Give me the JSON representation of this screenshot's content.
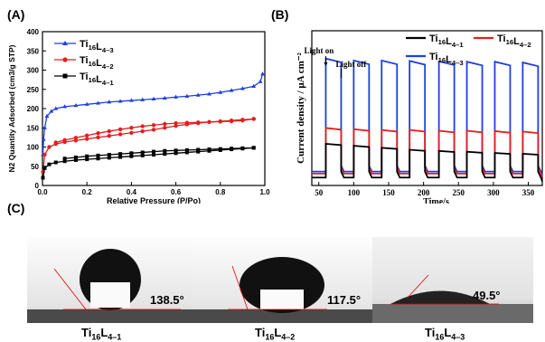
{
  "labels": {
    "a": "(A)",
    "b": "(B)",
    "c": "(C)"
  },
  "chart_data": [
    {
      "panel": "A",
      "type": "line",
      "xlabel": "Relative Pressure (P/Po)",
      "ylabel": "N2 Quantity Adsorbed (cm3/g STP)",
      "xlim": [
        0,
        1.0
      ],
      "ylim": [
        0,
        400
      ],
      "xticks": [
        "0.0",
        "0.2",
        "0.4",
        "0.6",
        "0.8",
        "1.0"
      ],
      "yticks": [
        "0",
        "50",
        "100",
        "150",
        "200",
        "250",
        "300",
        "350",
        "400"
      ],
      "legend": [
        "Ti16L4-3",
        "Ti16L4-2",
        "Ti16L4-1"
      ],
      "legend_position": "top-left",
      "series": [
        {
          "name": "Ti16L4-3",
          "color": "#1f3fe0",
          "marker": "triangle",
          "x": [
            0.002,
            0.005,
            0.01,
            0.02,
            0.04,
            0.06,
            0.1,
            0.15,
            0.2,
            0.25,
            0.3,
            0.35,
            0.4,
            0.45,
            0.5,
            0.55,
            0.6,
            0.65,
            0.7,
            0.75,
            0.8,
            0.85,
            0.9,
            0.95,
            0.98,
            0.99
          ],
          "values": [
            80,
            120,
            150,
            180,
            193,
            200,
            205,
            208,
            211,
            214,
            217,
            219,
            221,
            223,
            225,
            227,
            230,
            232,
            235,
            238,
            242,
            247,
            252,
            258,
            270,
            290
          ]
        },
        {
          "name": "Ti16L4-2",
          "color": "#e02020",
          "marker": "circle",
          "x": [
            0.002,
            0.01,
            0.03,
            0.06,
            0.1,
            0.15,
            0.2,
            0.25,
            0.3,
            0.35,
            0.4,
            0.45,
            0.5,
            0.55,
            0.6,
            0.65,
            0.7,
            0.75,
            0.8,
            0.85,
            0.9,
            0.95
          ],
          "values": [
            35,
            80,
            100,
            108,
            113,
            117,
            121,
            125,
            129,
            133,
            137,
            141,
            145,
            150,
            155,
            159,
            162,
            165,
            167,
            169,
            171,
            173
          ]
        },
        {
          "name": "Ti16L4-2 desorption",
          "color": "#e02020",
          "marker": "circle",
          "x": [
            0.95,
            0.9,
            0.85,
            0.8,
            0.75,
            0.7,
            0.65,
            0.6,
            0.55,
            0.5,
            0.45,
            0.4,
            0.35,
            0.3,
            0.25,
            0.2,
            0.15,
            0.1,
            0.06
          ],
          "values": [
            173,
            169,
            167,
            166,
            165,
            164,
            163,
            162,
            160,
            157,
            154,
            150,
            146,
            141,
            136,
            130,
            124,
            118,
            112
          ]
        },
        {
          "name": "Ti16L4-1",
          "color": "#000000",
          "marker": "square",
          "x": [
            0.002,
            0.01,
            0.03,
            0.06,
            0.1,
            0.15,
            0.2,
            0.25,
            0.3,
            0.35,
            0.4,
            0.45,
            0.5,
            0.55,
            0.6,
            0.65,
            0.7,
            0.75,
            0.8,
            0.85,
            0.9,
            0.95
          ],
          "values": [
            20,
            45,
            55,
            60,
            63,
            66,
            68,
            70,
            72,
            74,
            76,
            78,
            80,
            82,
            84,
            86,
            88,
            90,
            92,
            94,
            96,
            98
          ]
        },
        {
          "name": "Ti16L4-1 desorption",
          "color": "#000000",
          "marker": "square",
          "x": [
            0.95,
            0.9,
            0.85,
            0.8,
            0.75,
            0.7,
            0.65,
            0.6,
            0.55,
            0.5,
            0.45,
            0.4,
            0.35,
            0.3,
            0.25,
            0.2,
            0.15,
            0.1
          ],
          "values": [
            98,
            97,
            96,
            95,
            94,
            93,
            92,
            91,
            90,
            88,
            86,
            84,
            82,
            80,
            78,
            76,
            73,
            70
          ]
        }
      ]
    },
    {
      "panel": "B",
      "type": "line",
      "xlabel": "Time/s",
      "ylabel": "Current density / μA cm⁻²",
      "xlim": [
        40,
        370
      ],
      "ylim": [
        0,
        3.9
      ],
      "xticks": [
        "50",
        "100",
        "150",
        "200",
        "250",
        "300",
        "350"
      ],
      "annotations": [
        "Light on",
        "Light off"
      ],
      "legend": [
        "Ti16L4-1",
        "Ti16L4-2",
        "Ti16L4-3"
      ],
      "legend_position": "top-right",
      "light_on_times": [
        60,
        100,
        140,
        180,
        222,
        262,
        302,
        342
      ],
      "pulse_width_s": 22,
      "series": [
        {
          "name": "Ti16L4-1",
          "color": "#000000",
          "on_values": [
            1.05,
            1.0,
            0.95,
            0.9,
            0.87,
            0.85,
            0.82,
            0.8
          ],
          "off_value": 0.2
        },
        {
          "name": "Ti16L4-2",
          "color": "#e02020",
          "on_values": [
            1.45,
            1.42,
            1.4,
            1.4,
            1.38,
            1.38,
            1.37,
            1.36
          ],
          "off_value": 0.3
        },
        {
          "name": "Ti16L4-3",
          "color": "#1f3fe0",
          "on_values": [
            3.2,
            3.15,
            3.15,
            3.14,
            3.13,
            3.12,
            3.12,
            3.1
          ],
          "off_value": 0.35
        }
      ]
    }
  ],
  "contact_angles": [
    {
      "sample_base": "Ti",
      "sub1": "16",
      "mid": "L",
      "sub2": "4–1",
      "angle": "138.5°"
    },
    {
      "sample_base": "Ti",
      "sub1": "16",
      "mid": "L",
      "sub2": "4–2",
      "angle": "117.5°"
    },
    {
      "sample_base": "Ti",
      "sub1": "16",
      "mid": "L",
      "sub2": "4–3",
      "angle": "49.5°"
    }
  ]
}
